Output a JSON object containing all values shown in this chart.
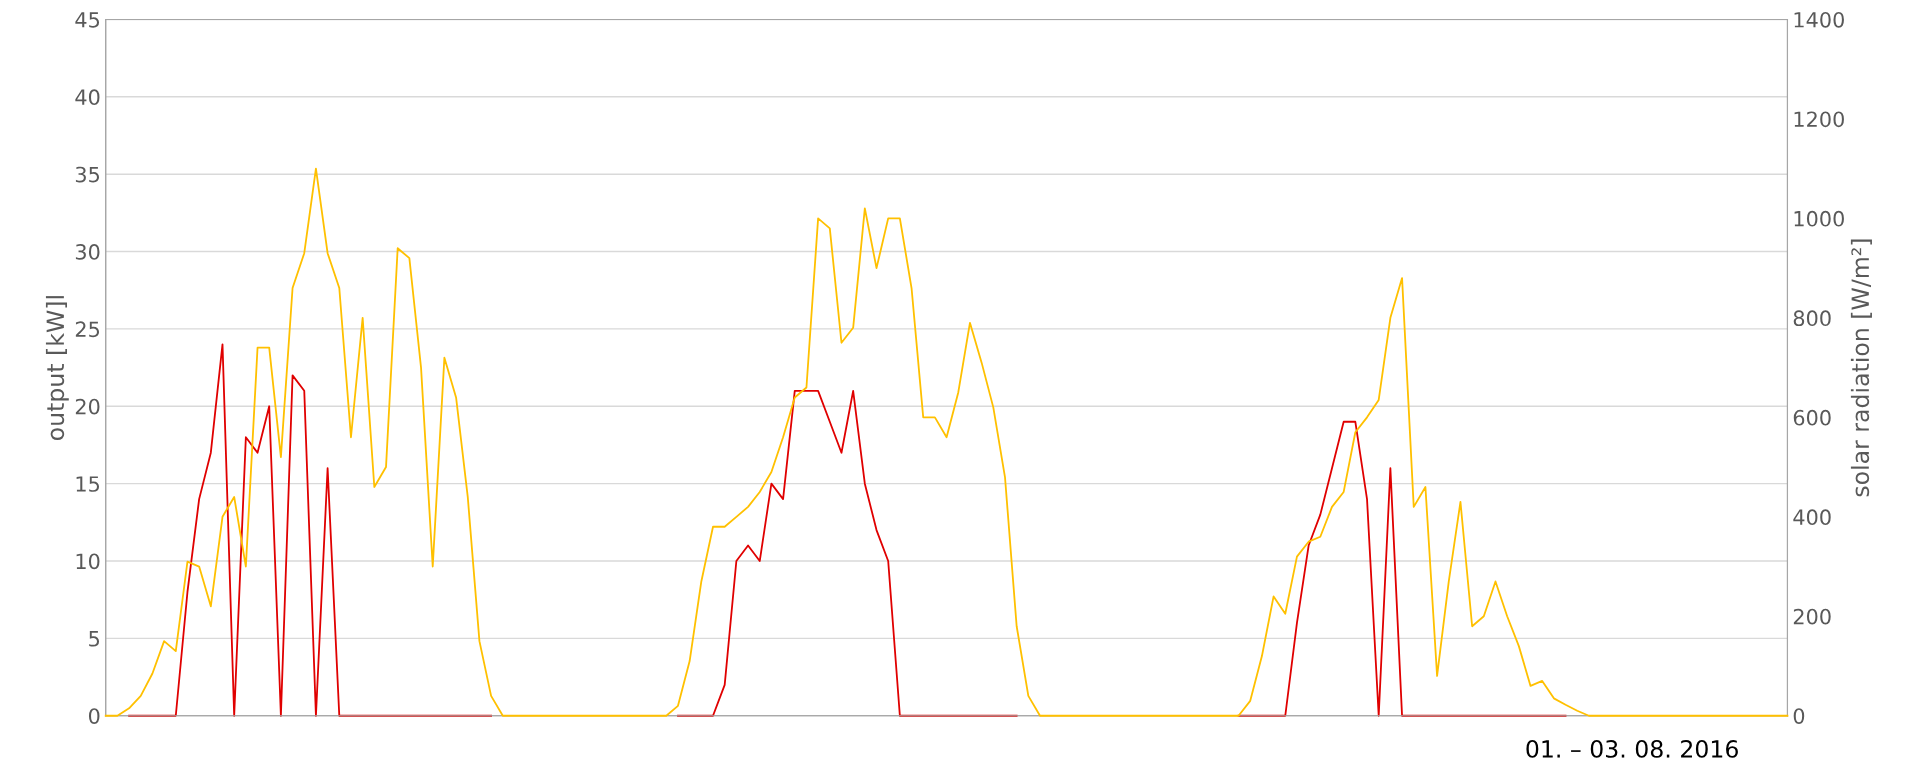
{
  "chart_data": {
    "type": "line",
    "ylabel": "output [kW]l",
    "y2label": "solar radiation [W/m²]",
    "annotations": [
      "01. – 03. 08. 2016"
    ],
    "categories": [
      null,
      null,
      null,
      null,
      null,
      null,
      null,
      null,
      null,
      null,
      null,
      null,
      null,
      null,
      null,
      null,
      null,
      null,
      null,
      null,
      null,
      null,
      null,
      null,
      null,
      null,
      null,
      null,
      null,
      null,
      null,
      null,
      null,
      null,
      null,
      null,
      null,
      null,
      null,
      null,
      null,
      null,
      null,
      null,
      null,
      null,
      null,
      null,
      null,
      null,
      null,
      null,
      null,
      null,
      null,
      null,
      null,
      null,
      null,
      null,
      null,
      null,
      null,
      null,
      null,
      null,
      null,
      null,
      null,
      null,
      null,
      null,
      null,
      null,
      null,
      null,
      null,
      null,
      null,
      null,
      null,
      null,
      null,
      null,
      null,
      null,
      null,
      null,
      null,
      null,
      null,
      null,
      null,
      null,
      null,
      null,
      null,
      null,
      null,
      null,
      null,
      null,
      null,
      null,
      null,
      null,
      null,
      null,
      null,
      null,
      null,
      null,
      null,
      null,
      null,
      null,
      null,
      null,
      null,
      null,
      null,
      null,
      null,
      null,
      null,
      null,
      null,
      null,
      null,
      null,
      null,
      null,
      null,
      null,
      null,
      null,
      null,
      null,
      null,
      null,
      null,
      null,
      null,
      null,
      null
    ],
    "ylim": [
      0,
      45
    ],
    "yticks": [
      0,
      5,
      10,
      15,
      20,
      25,
      30,
      35,
      40,
      45
    ],
    "y2lim": [
      0,
      1400
    ],
    "y2ticks": [
      0,
      200,
      400,
      600,
      800,
      1000,
      1200,
      1400
    ],
    "tick_labels": "y",
    "grid": "y",
    "line_style": "solid",
    "marker": "none",
    "series": [
      {
        "color": "#ffc000",
        "axis": "y2",
        "values": [
          0,
          0,
          15,
          40,
          85,
          150,
          130,
          310,
          300,
          220,
          400,
          440,
          300,
          740,
          740,
          520,
          860,
          930,
          1100,
          930,
          860,
          560,
          800,
          460,
          500,
          940,
          920,
          700,
          300,
          720,
          640,
          440,
          150,
          40,
          0,
          0,
          0,
          0,
          0,
          0,
          0,
          0,
          0,
          0,
          0,
          0,
          0,
          0,
          0,
          20,
          110,
          270,
          380,
          380,
          400,
          420,
          450,
          490,
          560,
          640,
          660,
          1000,
          980,
          750,
          780,
          1020,
          900,
          1000,
          1000,
          860,
          600,
          600,
          560,
          650,
          790,
          710,
          620,
          480,
          180,
          40,
          0,
          0,
          0,
          0,
          0,
          0,
          0,
          0,
          0,
          0,
          0,
          0,
          0,
          0,
          0,
          0,
          0,
          0,
          30,
          120,
          240,
          205,
          320,
          350,
          360,
          420,
          450,
          570,
          600,
          635,
          800,
          880,
          420,
          460,
          80,
          270,
          430,
          180,
          200,
          270,
          200,
          140,
          60,
          70,
          35,
          22,
          10,
          0,
          0,
          0,
          0,
          0,
          0,
          0,
          0,
          0,
          0,
          0,
          0,
          0,
          0,
          0,
          0,
          0,
          0
        ]
      },
      {
        "color": "#e00000",
        "values": [
          null,
          null,
          0,
          0,
          0,
          0,
          0,
          8,
          14,
          17,
          24,
          0,
          18,
          17,
          20,
          0,
          22,
          21,
          0,
          16,
          0,
          0,
          0,
          0,
          0,
          0,
          0,
          0,
          0,
          0,
          0,
          0,
          0,
          0,
          null,
          null,
          null,
          null,
          null,
          null,
          null,
          null,
          null,
          null,
          null,
          null,
          null,
          null,
          null,
          0,
          0,
          0,
          0,
          2,
          10,
          11,
          10,
          15,
          14,
          21,
          21,
          21,
          19,
          17,
          21,
          15,
          12,
          10,
          0,
          0,
          0,
          0,
          0,
          0,
          0,
          0,
          0,
          0,
          0,
          null,
          null,
          null,
          null,
          null,
          null,
          null,
          null,
          null,
          null,
          null,
          null,
          null,
          null,
          null,
          null,
          null,
          null,
          0,
          0,
          0,
          0,
          0,
          6,
          11,
          13,
          16,
          19,
          19,
          14,
          0,
          16,
          0,
          0,
          0,
          0,
          0,
          0,
          0,
          0,
          0,
          0,
          0,
          0,
          0,
          0,
          0,
          null,
          null,
          null,
          null,
          null,
          null,
          null,
          null,
          null,
          null,
          null,
          null,
          null,
          null,
          null,
          null,
          null,
          null,
          null
        ]
      }
    ]
  }
}
